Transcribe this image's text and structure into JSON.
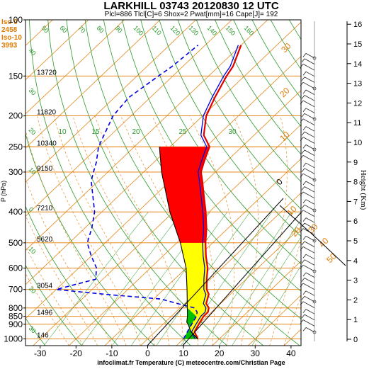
{
  "header": {
    "title": "LARKHILL 03743 20120830 12 UTC",
    "subtitle": "Plcl=886 Tlcl[C]=6 Shox=2 Pwat[mm]=16 Cape[J]= 192",
    "footer": "infoclimat.fr Temperature (C) meteocentre.com/Christian Page"
  },
  "iso_labels": [
    {
      "text": "Iso 0"
    },
    {
      "text": "2458"
    },
    {
      "text": "Iso-10"
    },
    {
      "text": "3993"
    }
  ],
  "colors": {
    "isobar": "#e07a00",
    "dry_adiabat": "#f0a040",
    "moist_adiabat": "#2a9a2a",
    "temperature": "#e00000",
    "dewpoint": "#0000e0",
    "parcel": "#000000",
    "cape_fill": "#ff0000",
    "positive_fill": "#ffff00",
    "cin_fill": "#00c000"
  },
  "chart_data": {
    "type": "line",
    "title": "LARKHILL 03743 20120830 12 UTC",
    "xlabel": "Temperature (C)",
    "ylabel": "P (hPa)",
    "y2label": "Height (Km)",
    "x_ticks": [
      "-30",
      "-20",
      "-10",
      "0",
      "10",
      "20",
      "30",
      "40"
    ],
    "p_ticks": [
      "100",
      "150",
      "200",
      "250",
      "300",
      "400",
      "500",
      "600",
      "700",
      "800",
      "850",
      "900",
      "1000"
    ],
    "height_ticks": [
      "0",
      "1",
      "2",
      "3",
      "4",
      "5",
      "6",
      "7",
      "8",
      "9",
      "10",
      "11",
      "12",
      "13",
      "14",
      "15",
      "16"
    ],
    "geopotential_labels": [
      {
        "p": 150,
        "text": "13720"
      },
      {
        "p": 200,
        "text": "11820"
      },
      {
        "p": 250,
        "text": "10340"
      },
      {
        "p": 300,
        "text": "9150"
      },
      {
        "p": 400,
        "text": "7210"
      },
      {
        "p": 500,
        "text": "5620"
      },
      {
        "p": 700,
        "text": "3054"
      },
      {
        "p": 850,
        "text": "1496"
      },
      {
        "p": 1000,
        "text": "146"
      }
    ],
    "mixing_ratio_labels": [
      "10",
      "15",
      "20",
      "25",
      "30"
    ],
    "top_labels": [
      "50",
      "60",
      "70",
      "80",
      "90",
      "100",
      "110",
      "120",
      "130",
      "140",
      "150",
      "160"
    ],
    "left_labels": [
      "40",
      "30",
      "20",
      "10",
      "0",
      "10",
      "20",
      "30"
    ],
    "adiabat_labels": [
      "30",
      "20",
      "10",
      "0",
      "10",
      "20",
      "30",
      "40",
      "50"
    ],
    "temperature": [
      {
        "p": 1000,
        "t": 14
      },
      {
        "p": 975,
        "t": 12.5
      },
      {
        "p": 950,
        "t": 11
      },
      {
        "p": 925,
        "t": 10.5
      },
      {
        "p": 900,
        "t": 10
      },
      {
        "p": 875,
        "t": 9.5
      },
      {
        "p": 850,
        "t": 9
      },
      {
        "p": 825,
        "t": 9
      },
      {
        "p": 800,
        "t": 8
      },
      {
        "p": 775,
        "t": 6
      },
      {
        "p": 750,
        "t": 5
      },
      {
        "p": 725,
        "t": 4
      },
      {
        "p": 700,
        "t": 2
      },
      {
        "p": 650,
        "t": -1
      },
      {
        "p": 600,
        "t": -4
      },
      {
        "p": 550,
        "t": -8
      },
      {
        "p": 500,
        "t": -12
      },
      {
        "p": 450,
        "t": -16
      },
      {
        "p": 400,
        "t": -21
      },
      {
        "p": 350,
        "t": -27
      },
      {
        "p": 320,
        "t": -31
      },
      {
        "p": 300,
        "t": -34
      },
      {
        "p": 280,
        "t": -36
      },
      {
        "p": 260,
        "t": -38
      },
      {
        "p": 250,
        "t": -39
      },
      {
        "p": 230,
        "t": -44
      },
      {
        "p": 200,
        "t": -49
      },
      {
        "p": 175,
        "t": -52
      },
      {
        "p": 150,
        "t": -55
      },
      {
        "p": 140,
        "t": -56
      },
      {
        "p": 120,
        "t": -60
      }
    ],
    "dewpoint": [
      {
        "p": 1000,
        "t": 10
      },
      {
        "p": 975,
        "t": 9.5
      },
      {
        "p": 950,
        "t": 9
      },
      {
        "p": 925,
        "t": 8.5
      },
      {
        "p": 900,
        "t": 8
      },
      {
        "p": 875,
        "t": 7.5
      },
      {
        "p": 850,
        "t": 7
      },
      {
        "p": 825,
        "t": 6
      },
      {
        "p": 800,
        "t": 4
      },
      {
        "p": 775,
        "t": -2
      },
      {
        "p": 750,
        "t": -8
      },
      {
        "p": 725,
        "t": -25
      },
      {
        "p": 700,
        "t": -40
      },
      {
        "p": 650,
        "t": -32
      },
      {
        "p": 600,
        "t": -35
      },
      {
        "p": 550,
        "t": -40
      },
      {
        "p": 500,
        "t": -45
      },
      {
        "p": 450,
        "t": -48
      },
      {
        "p": 400,
        "t": -52
      },
      {
        "p": 350,
        "t": -58
      },
      {
        "p": 320,
        "t": -62
      },
      {
        "p": 300,
        "t": -64
      },
      {
        "p": 280,
        "t": -66
      },
      {
        "p": 250,
        "t": -70
      },
      {
        "p": 200,
        "t": -75
      },
      {
        "p": 175,
        "t": -76
      },
      {
        "p": 150,
        "t": -74
      },
      {
        "p": 140,
        "t": -73
      },
      {
        "p": 120,
        "t": -72
      }
    ],
    "parcel": [
      {
        "p": 1000,
        "t": 14
      },
      {
        "p": 950,
        "t": 10
      },
      {
        "p": 900,
        "t": 7
      },
      {
        "p": 886,
        "t": 6
      },
      {
        "p": 850,
        "t": 4.5
      },
      {
        "p": 800,
        "t": 2
      },
      {
        "p": 700,
        "t": -3.5
      },
      {
        "p": 600,
        "t": -10
      },
      {
        "p": 500,
        "t": -19
      },
      {
        "p": 400,
        "t": -31
      },
      {
        "p": 300,
        "t": -45
      },
      {
        "p": 250,
        "t": -53
      }
    ]
  }
}
